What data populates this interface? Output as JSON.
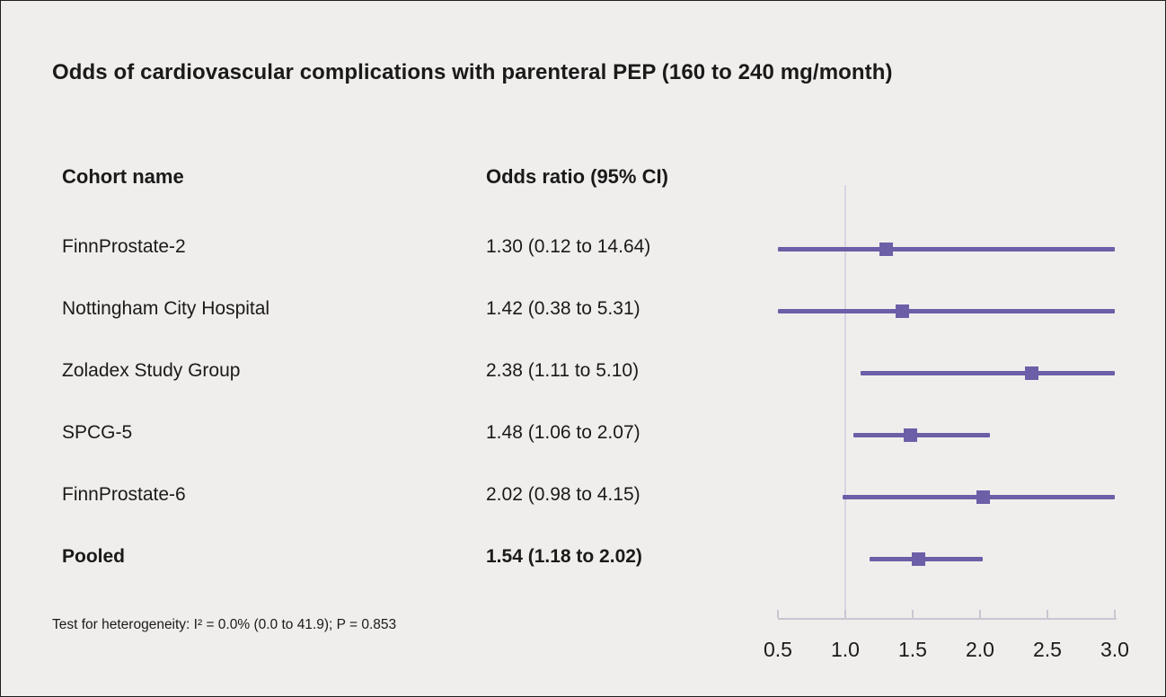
{
  "title": "Odds of cardiovascular complications with parenteral PEP (160 to 240 mg/month)",
  "columns": {
    "cohort": "Cohort name",
    "odds_ratio": "Odds ratio (95% CI)"
  },
  "footnote": "Test for heterogeneity: I² = 0.0% (0.0 to 41.9); P = 0.853",
  "colors": {
    "accent": "#6c5fa7",
    "background": "#f0eeec",
    "axis": "#c9c6d2",
    "reference_line": "#d8d5e0",
    "text": "#1a1a1a"
  },
  "chart_data": {
    "type": "forest",
    "title": "Odds of cardiovascular complications with parenteral PEP (160 to 240 mg/month)",
    "x_range": [
      0.5,
      3.0
    ],
    "x_ticks": [
      0.5,
      1.0,
      1.5,
      2.0,
      2.5,
      3.0
    ],
    "x_tick_labels": [
      "0.5",
      "1.0",
      "1.5",
      "2.0",
      "2.5",
      "3.0"
    ],
    "reference_value": 1.0,
    "rows": [
      {
        "label": "FinnProstate-2",
        "or_text": "1.30 (0.12 to 14.64)",
        "estimate": 1.3,
        "lower": 0.12,
        "upper": 14.64,
        "pooled": false
      },
      {
        "label": "Nottingham City Hospital",
        "or_text": "1.42 (0.38 to 5.31)",
        "estimate": 1.42,
        "lower": 0.38,
        "upper": 5.31,
        "pooled": false
      },
      {
        "label": "Zoladex Study Group",
        "or_text": "2.38 (1.11 to 5.10)",
        "estimate": 2.38,
        "lower": 1.11,
        "upper": 5.1,
        "pooled": false
      },
      {
        "label": "SPCG-5",
        "or_text": "1.48 (1.06 to 2.07)",
        "estimate": 1.48,
        "lower": 1.06,
        "upper": 2.07,
        "pooled": false
      },
      {
        "label": "FinnProstate-6",
        "or_text": "2.02 (0.98 to 4.15)",
        "estimate": 2.02,
        "lower": 0.98,
        "upper": 4.15,
        "pooled": false
      },
      {
        "label": "Pooled",
        "or_text": "1.54 (1.18 to 2.02)",
        "estimate": 1.54,
        "lower": 1.18,
        "upper": 2.02,
        "pooled": true
      }
    ]
  }
}
